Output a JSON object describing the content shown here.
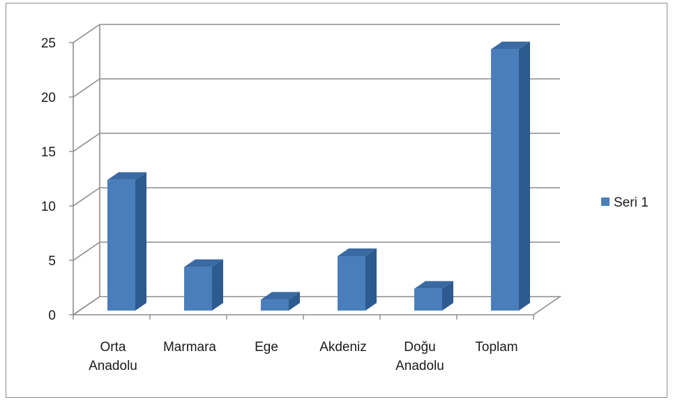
{
  "chart_data": {
    "type": "bar",
    "style": "3d-column",
    "categories": [
      [
        "Orta",
        "Anadolu"
      ],
      [
        "Marmara"
      ],
      [
        "Ege"
      ],
      [
        "Akdeniz"
      ],
      [
        "Doğu",
        "Anadolu"
      ],
      [
        "Toplam"
      ]
    ],
    "series": [
      {
        "name": "Seri 1",
        "values": [
          12,
          4,
          1,
          5,
          2,
          24
        ]
      }
    ],
    "ylim": [
      0,
      25
    ],
    "yticks": [
      "0",
      "5",
      "10",
      "15",
      "20",
      "25"
    ],
    "grid": true,
    "legend_position": "right",
    "colors": {
      "bar_front": "#4a7ebb",
      "bar_side": "#2d5a8f",
      "bar_top": "#3a6aa3",
      "grid": "#8c8c8c",
      "axis": "#8c8c8c"
    }
  }
}
